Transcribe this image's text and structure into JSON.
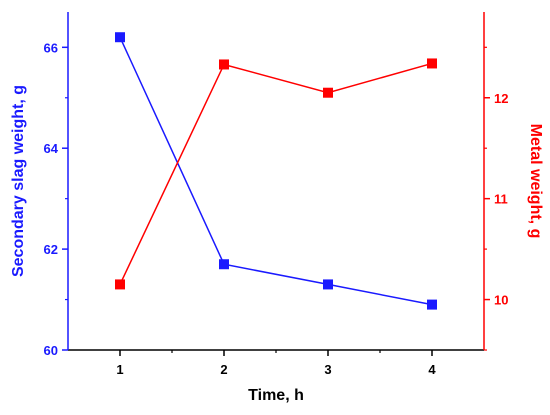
{
  "chart_data": {
    "type": "line",
    "x": [
      1,
      2,
      3,
      4
    ],
    "xlabel": "Time, h",
    "xlim": [
      0.5,
      4.5
    ],
    "xticks": [
      "1",
      "2",
      "3",
      "4"
    ],
    "series": [
      {
        "values": [
          66.2,
          61.7,
          61.3,
          60.9
        ],
        "axis": "left",
        "color": "#1a1aff",
        "marker": "square"
      },
      {
        "values": [
          10.15,
          12.33,
          12.05,
          12.34
        ],
        "axis": "right",
        "color": "#ff0000",
        "marker": "square"
      }
    ],
    "left_axis": {
      "label": "Secondary slag weight, g",
      "ylim": [
        60,
        66.7
      ],
      "ticks": [
        "60",
        "62",
        "64",
        "66"
      ],
      "color": "#1a1aff"
    },
    "right_axis": {
      "label": "Metal weight, g",
      "ylim": [
        9.5,
        12.85
      ],
      "ticks": [
        "10",
        "11",
        "12"
      ],
      "color": "#ff0000"
    },
    "grid": false
  }
}
